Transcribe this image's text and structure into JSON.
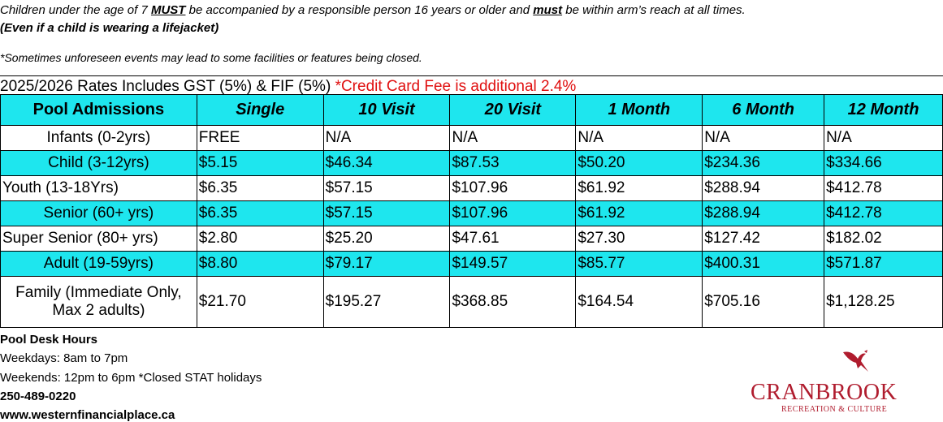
{
  "notice": {
    "line1_a": "Children under the age of 7  ",
    "line1_must1": "MUST",
    "line1_b": "  be accompanied by a responsible person 16 years or older and  ",
    "line1_must2": "must",
    "line1_c": "  be within arm’s reach at all times.",
    "line2": "(Even if a child is wearing a lifejacket)",
    "line3": "*Sometimes unforeseen events may lead to some facilities or features being closed."
  },
  "rates_header": {
    "text": "2025/2026 Rates Includes GST (5%) & FIF (5%) ",
    "fee_note": "*Credit Card Fee is additional 2.4%",
    "fee_color": "#e01010"
  },
  "table": {
    "highlight_color": "#1ee6ee",
    "headers": [
      "Pool Admissions",
      "Single",
      "10 Visit",
      "20 Visit",
      "1 Month",
      "6 Month",
      "12 Month"
    ],
    "rows": [
      {
        "category": "Infants (0-2yrs)",
        "values": [
          "FREE",
          "N/A",
          "N/A",
          "N/A",
          "N/A",
          "N/A"
        ]
      },
      {
        "category": "Child (3-12yrs)",
        "values": [
          "$5.15",
          "$46.34",
          "$87.53",
          "$50.20",
          "$234.36",
          "$334.66"
        ]
      },
      {
        "category": "Youth (13-18Yrs)",
        "values": [
          "$6.35",
          "$57.15",
          "$107.96",
          "$61.92",
          "$288.94",
          "$412.78"
        ]
      },
      {
        "category": "Senior (60+ yrs)",
        "values": [
          "$6.35",
          "$57.15",
          "$107.96",
          "$61.92",
          "$288.94",
          "$412.78"
        ]
      },
      {
        "category": "Super Senior (80+ yrs)",
        "values": [
          "$2.80",
          "$25.20",
          "$47.61",
          "$27.30",
          "$127.42",
          "$182.02"
        ]
      },
      {
        "category": "Adult (19-59yrs)",
        "values": [
          "$8.80",
          "$79.17",
          "$149.57",
          "$85.77",
          "$400.31",
          "$571.87"
        ]
      },
      {
        "category": "Family (Immediate Only, Max 2 adults)",
        "category_line1": "Family (Immediate Only,",
        "category_line2": "Max 2 adults)",
        "values": [
          "$21.70",
          "$195.27",
          "$368.85",
          "$164.54",
          "$705.16",
          "$1,128.25"
        ]
      }
    ]
  },
  "footer": {
    "title": "Pool Desk Hours",
    "weekdays": "Weekdays: 8am to 7pm",
    "weekends": "Weekends: 12pm to 6pm  *Closed STAT holidays",
    "phone": "250-489-0220",
    "website": "www.westernfinancialplace.ca"
  },
  "logo": {
    "word": "CRANBROOK",
    "sub": "RECREATION & CULTURE",
    "icon": "eagle-icon",
    "color": "#b01c2e"
  }
}
